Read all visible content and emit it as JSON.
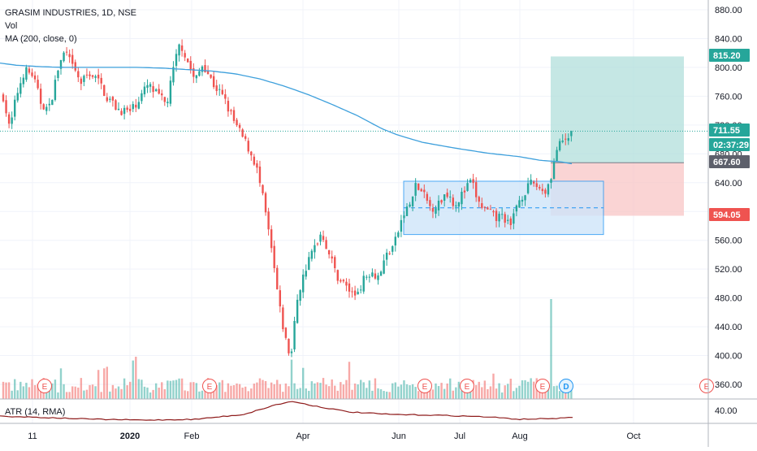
{
  "legend": {
    "symbol": "GRASIM INDUSTRIES, 1D, NSE",
    "vol_label": "Vol",
    "ma_label": "MA (200, close, 0)"
  },
  "atr_legend": {
    "label": "ATR (14, RMA)"
  },
  "colors": {
    "up": "#26a69a",
    "down": "#ef5350",
    "ma": "#3ea0dc",
    "atr": "#8e1b1b",
    "rect_fill": "#cfe5fa",
    "rect_stroke": "#2196f3",
    "profit_fill": "#b2dfdb",
    "loss_fill": "#f8c6c5",
    "earnings": "#ef5350",
    "dividend": "#2196f3"
  },
  "events": {
    "earnings_label": "E",
    "dividend_label": "D"
  },
  "chart_data": {
    "type": "candlestick",
    "title": "GRASIM INDUSTRIES, 1D, NSE",
    "price_axis": {
      "ticks": [
        "880.00",
        "840.00",
        "800.00",
        "760.00",
        "720.00",
        "680.00",
        "640.00",
        "600.00",
        "560.00",
        "520.00",
        "480.00",
        "440.00",
        "400.00",
        "360.00"
      ],
      "ylim": [
        340,
        890
      ]
    },
    "atr_axis": {
      "ticks": [
        "40.00"
      ]
    },
    "time_axis": {
      "labels": [
        "11",
        "2020",
        "Feb",
        "Apr",
        "Jun",
        "Jul",
        "Aug",
        "Oct"
      ]
    },
    "price_labels": [
      {
        "value": 815.2,
        "text": "815.20",
        "color": "#26a69a"
      },
      {
        "value": 711.55,
        "text": "711.55",
        "color": "#26a69a"
      },
      {
        "text": "02:37:29",
        "color": "#26a69a"
      },
      {
        "value": 667.6,
        "text": "667.60",
        "color": "#5d606b"
      },
      {
        "value": 594.05,
        "text": "594.05",
        "color": "#ef5350"
      }
    ],
    "current_price": 711.55,
    "range_box": {
      "top": 642,
      "bottom": 568,
      "mid": 605
    },
    "position": {
      "entry": 667.6,
      "target": 815.2,
      "stop": 594.05
    },
    "ma_anchors": [
      [
        0,
        806
      ],
      [
        20,
        803
      ],
      [
        50,
        801
      ],
      [
        80,
        800
      ],
      [
        110,
        800
      ],
      [
        140,
        800
      ],
      [
        170,
        800
      ],
      [
        200,
        799
      ],
      [
        230,
        797
      ],
      [
        260,
        795
      ],
      [
        290,
        791
      ],
      [
        320,
        784
      ],
      [
        350,
        774
      ],
      [
        380,
        762
      ],
      [
        410,
        748
      ],
      [
        440,
        733
      ],
      [
        470,
        715
      ],
      [
        490,
        706
      ],
      [
        520,
        696
      ],
      [
        560,
        688
      ],
      [
        600,
        681
      ],
      [
        640,
        676
      ],
      [
        665,
        671
      ],
      [
        690,
        669
      ],
      [
        705,
        666
      ]
    ],
    "price_anchors": [
      [
        4,
        760
      ],
      [
        12,
        712
      ],
      [
        20,
        760
      ],
      [
        30,
        796
      ],
      [
        40,
        790
      ],
      [
        50,
        752
      ],
      [
        60,
        740
      ],
      [
        72,
        800
      ],
      [
        80,
        822
      ],
      [
        90,
        798
      ],
      [
        100,
        778
      ],
      [
        110,
        793
      ],
      [
        122,
        780
      ],
      [
        132,
        758
      ],
      [
        145,
        742
      ],
      [
        160,
        738
      ],
      [
        172,
        758
      ],
      [
        182,
        775
      ],
      [
        195,
        760
      ],
      [
        205,
        748
      ],
      [
        215,
        805
      ],
      [
        222,
        835
      ],
      [
        232,
        805
      ],
      [
        240,
        780
      ],
      [
        250,
        806
      ],
      [
        262,
        778
      ],
      [
        275,
        758
      ],
      [
        290,
        720
      ],
      [
        305,
        690
      ],
      [
        315,
        665
      ],
      [
        325,
        610
      ],
      [
        335,
        540
      ],
      [
        345,
        460
      ],
      [
        352,
        420
      ],
      [
        358,
        395
      ],
      [
        366,
        480
      ],
      [
        376,
        520
      ],
      [
        386,
        548
      ],
      [
        396,
        572
      ],
      [
        404,
        545
      ],
      [
        415,
        510
      ],
      [
        425,
        498
      ],
      [
        436,
        482
      ],
      [
        446,
        502
      ],
      [
        456,
        518
      ],
      [
        466,
        510
      ],
      [
        476,
        540
      ],
      [
        486,
        556
      ],
      [
        496,
        594
      ],
      [
        506,
        612
      ],
      [
        512,
        636
      ],
      [
        520,
        625
      ],
      [
        530,
        605
      ],
      [
        540,
        610
      ],
      [
        550,
        628
      ],
      [
        560,
        610
      ],
      [
        570,
        625
      ],
      [
        580,
        642
      ],
      [
        590,
        610
      ],
      [
        600,
        600
      ],
      [
        610,
        590
      ],
      [
        620,
        595
      ],
      [
        628,
        575
      ],
      [
        636,
        610
      ],
      [
        646,
        628
      ],
      [
        656,
        640
      ],
      [
        665,
        632
      ],
      [
        672,
        628
      ],
      [
        678,
        648
      ],
      [
        686,
        688
      ],
      [
        693,
        695
      ],
      [
        700,
        702
      ],
      [
        706,
        714
      ]
    ],
    "volume_events_x": [
      55,
      258,
      523,
      575,
      668,
      697
    ]
  },
  "ui": {
    "earnings_x": [
      55,
      258,
      523,
      575,
      668,
      870
    ],
    "dividend_x": [
      697
    ]
  }
}
